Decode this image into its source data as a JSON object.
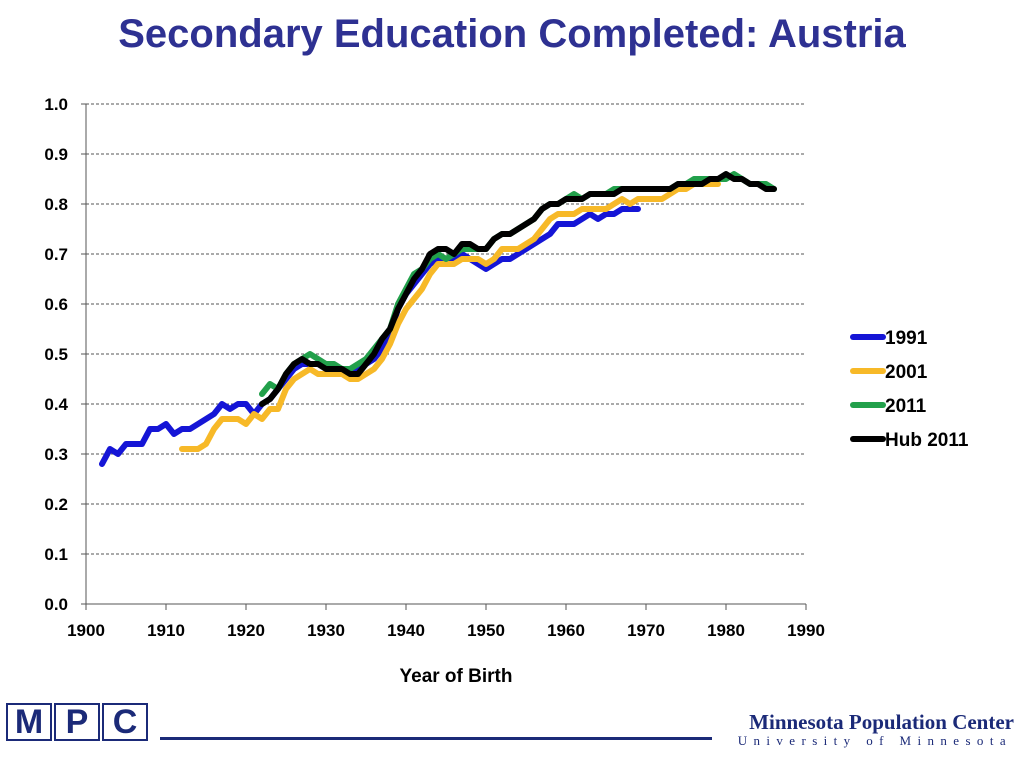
{
  "slide": {
    "title": "Secondary Education Completed: Austria"
  },
  "footer": {
    "logo_letters": [
      "M",
      "P",
      "C"
    ],
    "org_name": "Minnesota Population Center",
    "org_sub": "University of Minnesota"
  },
  "chart_data": {
    "type": "line",
    "title": "",
    "xlabel": "Year of Birth",
    "ylabel": "",
    "xlim": [
      1900,
      1990
    ],
    "ylim": [
      0,
      1
    ],
    "xticks": [
      1900,
      1910,
      1920,
      1930,
      1940,
      1950,
      1960,
      1970,
      1980,
      1990
    ],
    "yticks": [
      0.0,
      0.1,
      0.2,
      0.3,
      0.4,
      0.5,
      0.6,
      0.7,
      0.8,
      0.9,
      1.0
    ],
    "ytick_labels": [
      "0.0",
      "0.1",
      "0.2",
      "0.3",
      "0.4",
      "0.5",
      "0.6",
      "0.7",
      "0.8",
      "0.9",
      "1.0"
    ],
    "grid": "horizontal dashed",
    "legend_position": "right",
    "series": [
      {
        "name": "1991",
        "color": "#1515d6",
        "x": [
          1902,
          1903,
          1904,
          1905,
          1906,
          1907,
          1908,
          1909,
          1910,
          1911,
          1912,
          1913,
          1914,
          1915,
          1916,
          1917,
          1918,
          1919,
          1920,
          1921,
          1922,
          1923,
          1924,
          1925,
          1926,
          1927,
          1928,
          1929,
          1930,
          1931,
          1932,
          1933,
          1934,
          1935,
          1936,
          1937,
          1938,
          1939,
          1940,
          1941,
          1942,
          1943,
          1944,
          1945,
          1946,
          1947,
          1948,
          1949,
          1950,
          1951,
          1952,
          1953,
          1954,
          1955,
          1956,
          1957,
          1958,
          1959,
          1960,
          1961,
          1962,
          1963,
          1964,
          1965,
          1966,
          1967,
          1968,
          1969
        ],
        "y": [
          0.28,
          0.31,
          0.3,
          0.32,
          0.32,
          0.32,
          0.35,
          0.35,
          0.36,
          0.34,
          0.35,
          0.35,
          0.36,
          0.37,
          0.38,
          0.4,
          0.39,
          0.4,
          0.4,
          0.38,
          0.4,
          0.41,
          0.43,
          0.45,
          0.47,
          0.48,
          0.48,
          0.48,
          0.48,
          0.47,
          0.47,
          0.47,
          0.47,
          0.48,
          0.49,
          0.51,
          0.54,
          0.59,
          0.62,
          0.64,
          0.66,
          0.68,
          0.69,
          0.68,
          0.69,
          0.7,
          0.69,
          0.68,
          0.67,
          0.68,
          0.69,
          0.69,
          0.7,
          0.71,
          0.72,
          0.73,
          0.74,
          0.76,
          0.76,
          0.76,
          0.77,
          0.78,
          0.77,
          0.78,
          0.78,
          0.79,
          0.79,
          0.79
        ]
      },
      {
        "name": "2001",
        "color": "#f7b928",
        "x": [
          1912,
          1913,
          1914,
          1915,
          1916,
          1917,
          1918,
          1919,
          1920,
          1921,
          1922,
          1923,
          1924,
          1925,
          1926,
          1927,
          1928,
          1929,
          1930,
          1931,
          1932,
          1933,
          1934,
          1935,
          1936,
          1937,
          1938,
          1939,
          1940,
          1941,
          1942,
          1943,
          1944,
          1945,
          1946,
          1947,
          1948,
          1949,
          1950,
          1951,
          1952,
          1953,
          1954,
          1955,
          1956,
          1957,
          1958,
          1959,
          1960,
          1961,
          1962,
          1963,
          1964,
          1965,
          1966,
          1967,
          1968,
          1969,
          1970,
          1971,
          1972,
          1973,
          1974,
          1975,
          1976,
          1977,
          1978,
          1979
        ],
        "y": [
          0.31,
          0.31,
          0.31,
          0.32,
          0.35,
          0.37,
          0.37,
          0.37,
          0.36,
          0.38,
          0.37,
          0.39,
          0.39,
          0.43,
          0.45,
          0.46,
          0.47,
          0.46,
          0.46,
          0.46,
          0.46,
          0.45,
          0.45,
          0.46,
          0.47,
          0.49,
          0.52,
          0.56,
          0.59,
          0.61,
          0.63,
          0.66,
          0.68,
          0.68,
          0.68,
          0.69,
          0.69,
          0.69,
          0.68,
          0.69,
          0.71,
          0.71,
          0.71,
          0.72,
          0.73,
          0.75,
          0.77,
          0.78,
          0.78,
          0.78,
          0.79,
          0.79,
          0.79,
          0.79,
          0.8,
          0.81,
          0.8,
          0.81,
          0.81,
          0.81,
          0.81,
          0.82,
          0.83,
          0.83,
          0.84,
          0.84,
          0.84,
          0.84
        ]
      },
      {
        "name": "2011",
        "color": "#22a04b",
        "x": [
          1922,
          1923,
          1924,
          1925,
          1926,
          1927,
          1928,
          1929,
          1930,
          1931,
          1932,
          1933,
          1934,
          1935,
          1936,
          1937,
          1938,
          1939,
          1940,
          1941,
          1942,
          1943,
          1944,
          1945,
          1946,
          1947,
          1948,
          1949,
          1950,
          1951,
          1952,
          1953,
          1954,
          1955,
          1956,
          1957,
          1958,
          1959,
          1960,
          1961,
          1962,
          1963,
          1964,
          1965,
          1966,
          1967,
          1968,
          1969,
          1970,
          1971,
          1972,
          1973,
          1974,
          1975,
          1976,
          1977,
          1978,
          1979,
          1980,
          1981,
          1982,
          1983,
          1984,
          1985,
          1986
        ],
        "y": [
          0.42,
          0.44,
          0.43,
          0.46,
          0.48,
          0.49,
          0.5,
          0.49,
          0.48,
          0.48,
          0.47,
          0.47,
          0.48,
          0.49,
          0.51,
          0.53,
          0.55,
          0.6,
          0.63,
          0.66,
          0.67,
          0.69,
          0.7,
          0.69,
          0.7,
          0.71,
          0.71,
          0.71,
          0.71,
          0.73,
          0.74,
          0.74,
          0.75,
          0.76,
          0.77,
          0.79,
          0.8,
          0.8,
          0.81,
          0.82,
          0.81,
          0.82,
          0.82,
          0.82,
          0.83,
          0.83,
          0.83,
          0.83,
          0.83,
          0.83,
          0.83,
          0.83,
          0.84,
          0.84,
          0.85,
          0.85,
          0.85,
          0.85,
          0.85,
          0.86,
          0.85,
          0.84,
          0.84,
          0.84,
          0.83
        ]
      },
      {
        "name": "Hub 2011",
        "color": "#000000",
        "x": [
          1922,
          1923,
          1924,
          1925,
          1926,
          1927,
          1928,
          1929,
          1930,
          1931,
          1932,
          1933,
          1934,
          1935,
          1936,
          1937,
          1938,
          1939,
          1940,
          1941,
          1942,
          1943,
          1944,
          1945,
          1946,
          1947,
          1948,
          1949,
          1950,
          1951,
          1952,
          1953,
          1954,
          1955,
          1956,
          1957,
          1958,
          1959,
          1960,
          1961,
          1962,
          1963,
          1964,
          1965,
          1966,
          1967,
          1968,
          1969,
          1970,
          1971,
          1972,
          1973,
          1974,
          1975,
          1976,
          1977,
          1978,
          1979,
          1980,
          1981,
          1982,
          1983,
          1984,
          1985,
          1986
        ],
        "y": [
          0.4,
          0.41,
          0.43,
          0.46,
          0.48,
          0.49,
          0.48,
          0.48,
          0.47,
          0.47,
          0.47,
          0.46,
          0.46,
          0.48,
          0.5,
          0.53,
          0.55,
          0.59,
          0.62,
          0.65,
          0.67,
          0.7,
          0.71,
          0.71,
          0.7,
          0.72,
          0.72,
          0.71,
          0.71,
          0.73,
          0.74,
          0.74,
          0.75,
          0.76,
          0.77,
          0.79,
          0.8,
          0.8,
          0.81,
          0.81,
          0.81,
          0.82,
          0.82,
          0.82,
          0.82,
          0.83,
          0.83,
          0.83,
          0.83,
          0.83,
          0.83,
          0.83,
          0.84,
          0.84,
          0.84,
          0.84,
          0.85,
          0.85,
          0.86,
          0.85,
          0.85,
          0.84,
          0.84,
          0.83,
          0.83
        ]
      }
    ]
  }
}
